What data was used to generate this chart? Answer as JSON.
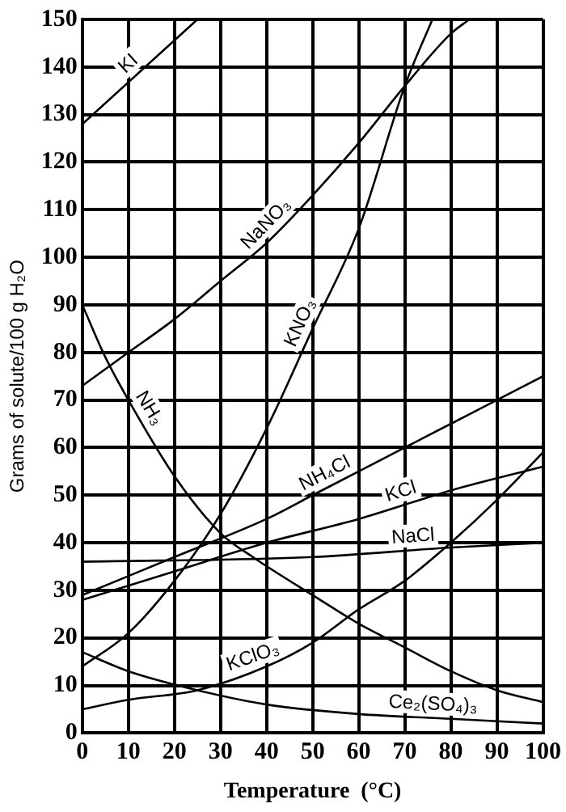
{
  "chart_data": {
    "type": "line",
    "xlabel": "Temperature  (°C)",
    "ylabel": "Grams of solute/100 g H₂O",
    "xlim": [
      0,
      100
    ],
    "ylim": [
      0,
      150
    ],
    "xticks": [
      0,
      10,
      20,
      30,
      40,
      50,
      60,
      70,
      80,
      90,
      100
    ],
    "yticks": [
      0,
      10,
      20,
      30,
      40,
      50,
      60,
      70,
      80,
      90,
      100,
      110,
      120,
      130,
      140,
      150
    ],
    "grid": true,
    "legend": false,
    "marker": "none",
    "line_style": "solid",
    "series": [
      {
        "name": "KI",
        "color": "#000000",
        "x": [
          0,
          25
        ],
        "values": [
          128,
          150
        ]
      },
      {
        "name": "NaNO₃",
        "color": "#000000",
        "x": [
          0,
          10,
          20,
          30,
          40,
          50,
          60,
          70,
          80,
          84
        ],
        "values": [
          73,
          80,
          87,
          95,
          103,
          113,
          124,
          136,
          147,
          150
        ]
      },
      {
        "name": "KNO₃",
        "color": "#000000",
        "x": [
          0,
          10,
          20,
          30,
          40,
          50,
          60,
          70,
          76
        ],
        "values": [
          14,
          21,
          32,
          46,
          64,
          85,
          106,
          136,
          150
        ]
      },
      {
        "name": "NH₃",
        "color": "#000000",
        "x": [
          0,
          5,
          10,
          20,
          30,
          37,
          50,
          60,
          70,
          80,
          90,
          100
        ],
        "values": [
          90,
          79,
          70,
          54,
          42,
          37,
          29,
          23,
          18,
          13,
          9,
          6.5
        ]
      },
      {
        "name": "NH₄Cl",
        "color": "#000000",
        "x": [
          0,
          20,
          40,
          50,
          60,
          70,
          80,
          90,
          100
        ],
        "values": [
          29,
          37,
          45,
          50,
          55,
          60,
          65,
          70,
          75
        ]
      },
      {
        "name": "KCl",
        "color": "#000000",
        "x": [
          0,
          20,
          40,
          60,
          80,
          100
        ],
        "values": [
          28,
          34,
          40,
          45,
          51,
          56
        ]
      },
      {
        "name": "NaCl",
        "color": "#000000",
        "x": [
          0,
          50,
          80,
          100
        ],
        "values": [
          36,
          37,
          39,
          40
        ]
      },
      {
        "name": "KClO₃",
        "color": "#000000",
        "x": [
          0,
          10,
          25,
          40,
          50,
          60,
          70,
          80,
          90,
          100
        ],
        "values": [
          5,
          7,
          9,
          14,
          19,
          26,
          32,
          40,
          49,
          59
        ]
      },
      {
        "name": "Ce₂(SO₄)₃",
        "color": "#000000",
        "x": [
          0,
          10,
          25,
          40,
          60,
          80,
          100
        ],
        "values": [
          17,
          13,
          9,
          6,
          4,
          3,
          2
        ]
      }
    ]
  }
}
